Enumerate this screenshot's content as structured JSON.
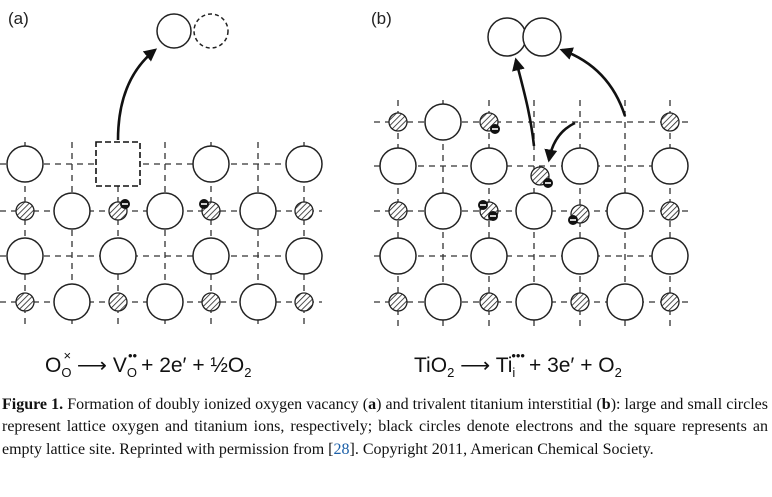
{
  "panels": [
    {
      "label": "(a)"
    },
    {
      "label": "(b)"
    }
  ],
  "equations": {
    "a": {
      "reactant": "O",
      "reactant_sub": "O",
      "reactant_sup": "×",
      "product1": "V",
      "product1_sub": "O",
      "product1_sup": "••",
      "rest": "+ 2e′ + ½O",
      "rest_sub": "2"
    },
    "b": {
      "reactant": "TiO",
      "reactant_sub": "2",
      "product1": "Ti",
      "product1_sub": "i",
      "product1_sup": "•••",
      "rest": "+ 3e′ + O",
      "rest_sub": "2"
    }
  },
  "caption": {
    "label": "Figure 1.",
    "t1": " Formation of doubly ionized oxygen vacancy (",
    "a": "a",
    "t2": ") and trivalent titanium interstitial (",
    "b": "b",
    "t3": "): large and small circles represent lattice oxygen and titanium ions, respectively; black circles denote electrons and the square represents an empty lattice site. Reprinted with permission from [",
    "ref": "28",
    "t4": "]. Copyright 2011, American Chemical Society."
  },
  "colors": {
    "ink": "#111111",
    "ref_link": "#1a5fa8"
  }
}
